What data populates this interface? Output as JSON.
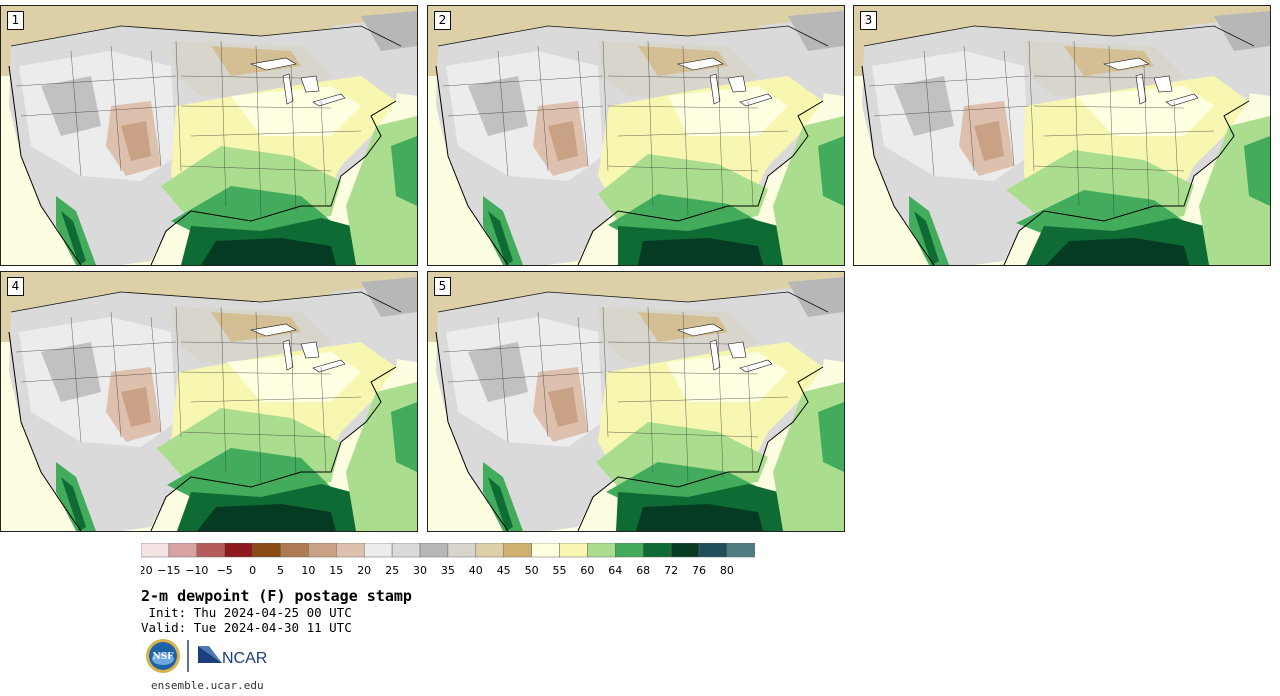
{
  "panels": [
    {
      "label": "1"
    },
    {
      "label": "2"
    },
    {
      "label": "3"
    },
    {
      "label": "4"
    },
    {
      "label": "5"
    }
  ],
  "colorbar": {
    "colors": [
      "#f5e4e4",
      "#d9a2a2",
      "#b45b5b",
      "#8e1a1e",
      "#8a4b12",
      "#b07a55",
      "#c9a184",
      "#ddc1ae",
      "#ececec",
      "#dadada",
      "#b7b7b7",
      "#d8d5cc",
      "#ddcfa6",
      "#d0b06d",
      "#ffffe2",
      "#f7f7b2",
      "#aade8e",
      "#43ac5c",
      "#0e6b33",
      "#053b22",
      "#1e4f5b",
      "#4f7c83"
    ],
    "labels": [
      "−20",
      "−15",
      "−10",
      "−5",
      "0",
      "5",
      "10",
      "15",
      "20",
      "25",
      "30",
      "35",
      "40",
      "45",
      "50",
      "55",
      "60",
      "64",
      "68",
      "72",
      "76",
      "80"
    ]
  },
  "title": "2-m dewpoint (F) postage stamp",
  "init_line": " Init: Thu 2024-04-25 00 UTC",
  "valid_line": "Valid: Tue 2024-04-30 11 UTC",
  "footer_url": "ensemble.ucar.edu",
  "logos": {
    "nsf": "NSF",
    "ncar": "NCAR"
  }
}
